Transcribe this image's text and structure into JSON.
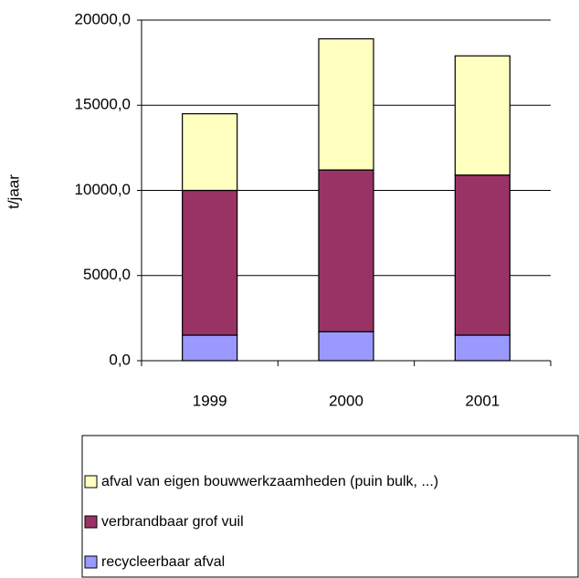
{
  "chart_data": {
    "type": "stacked_bar",
    "y_label": "t/jaar",
    "categories": [
      "1999",
      "2000",
      "2001"
    ],
    "series": [
      {
        "name": "recycleerbaar afval",
        "color": "#9999ff",
        "values": [
          1500,
          1700,
          1500
        ]
      },
      {
        "name": "verbrandbaar grof vuil",
        "color": "#993366",
        "values": [
          8500,
          9500,
          9400
        ]
      },
      {
        "name": "afval van eigen bouwwerkzaamheden (puin bulk, ...)",
        "color": "#ffffc0",
        "values": [
          4500,
          7700,
          7000
        ]
      }
    ],
    "ylim": [
      0,
      20000
    ],
    "yticks": [
      {
        "value": 0,
        "label": "0,0"
      },
      {
        "value": 5000,
        "label": "5000,0"
      },
      {
        "value": 10000,
        "label": "10000,0"
      },
      {
        "value": 15000,
        "label": "15000,0"
      },
      {
        "value": 20000,
        "label": "20000,0"
      }
    ],
    "grid": true,
    "legend": "bottom"
  }
}
